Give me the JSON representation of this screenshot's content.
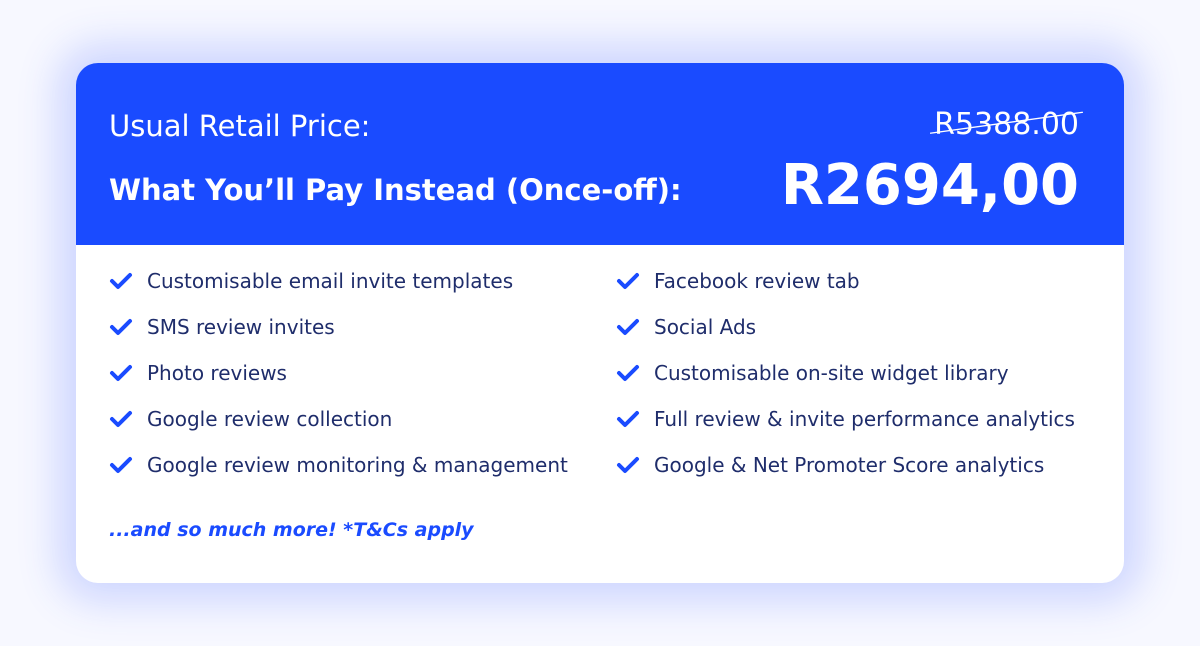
{
  "colors": {
    "accent": "#1a4bff",
    "text": "#1f2d6b"
  },
  "pricing": {
    "retail_label": "Usual Retail Price:",
    "retail_price": "R5388.00",
    "pay_label": "What You’ll Pay Instead (Once-off):",
    "pay_price": "R2694,00"
  },
  "features": [
    "Customisable email invite templates",
    "Facebook review tab",
    "SMS review invites",
    "Social Ads",
    "Photo reviews",
    "Customisable on-site widget library",
    "Google review collection",
    "Full review & invite performance analytics",
    "Google review monitoring & management",
    "Google & Net Promoter Score analytics"
  ],
  "icon": "check-icon",
  "footnote": "...and so much more! *T&Cs apply"
}
